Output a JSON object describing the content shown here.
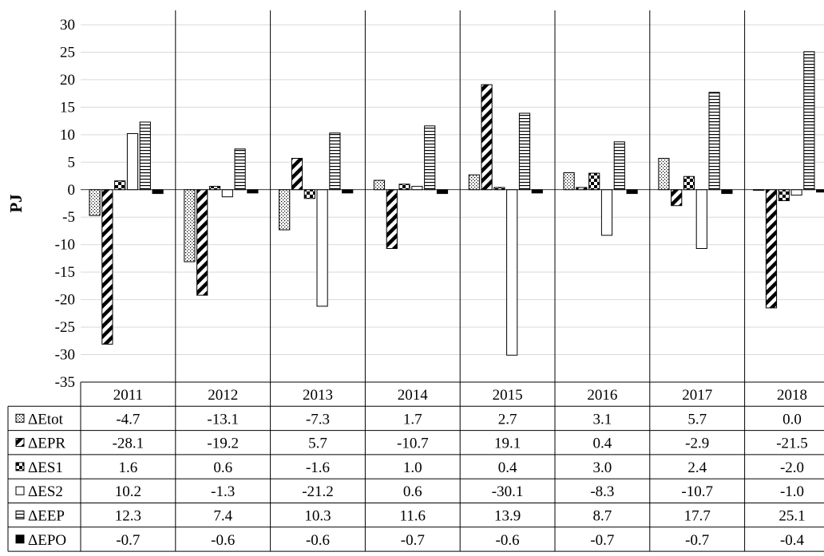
{
  "chart_data": {
    "type": "bar",
    "ylabel": "PJ",
    "ylim": [
      -35,
      30
    ],
    "yticks": [
      "30",
      "25",
      "20",
      "15",
      "10",
      "5",
      "0",
      "-5",
      "-10",
      "-15",
      "-20",
      "-25",
      "-30",
      "-35"
    ],
    "categories": [
      "2011",
      "2012",
      "2013",
      "2014",
      "2015",
      "2016",
      "2017",
      "2018"
    ],
    "legend_placement": "data-table-left",
    "grid": true,
    "series": [
      {
        "name": "ΔEtot",
        "pattern": "dots",
        "values": [
          -4.7,
          -13.1,
          -7.3,
          1.7,
          2.7,
          3.1,
          5.7,
          0.0
        ],
        "labels": [
          "-4.7",
          "-13.1",
          "-7.3",
          "1.7",
          "2.7",
          "3.1",
          "5.7",
          "0.0"
        ]
      },
      {
        "name": "ΔEPR",
        "pattern": "diagonal",
        "values": [
          -28.1,
          -19.2,
          5.7,
          -10.7,
          19.1,
          0.4,
          -2.9,
          -21.5
        ],
        "labels": [
          "-28.1",
          "-19.2",
          "5.7",
          "-10.7",
          "19.1",
          "0.4",
          "-2.9",
          "-21.5"
        ]
      },
      {
        "name": "ΔES1",
        "pattern": "checker",
        "values": [
          1.6,
          0.6,
          -1.6,
          1.0,
          0.4,
          3.0,
          2.4,
          -2.0
        ],
        "labels": [
          "1.6",
          "0.6",
          "-1.6",
          "1.0",
          "0.4",
          "3.0",
          "2.4",
          "-2.0"
        ]
      },
      {
        "name": "ΔES2",
        "pattern": "empty",
        "values": [
          10.2,
          -1.3,
          -21.2,
          0.6,
          -30.1,
          -8.3,
          -10.7,
          -1.0
        ],
        "labels": [
          "10.2",
          "-1.3",
          "-21.2",
          "0.6",
          "-30.1",
          "-8.3",
          "-10.7",
          "-1.0"
        ]
      },
      {
        "name": "ΔEEP",
        "pattern": "horizontal",
        "values": [
          12.3,
          7.4,
          10.3,
          11.6,
          13.9,
          8.7,
          17.7,
          25.1
        ],
        "labels": [
          "12.3",
          "7.4",
          "10.3",
          "11.6",
          "13.9",
          "8.7",
          "17.7",
          "25.1"
        ]
      },
      {
        "name": "ΔEPO",
        "pattern": "solid",
        "values": [
          -0.7,
          -0.6,
          -0.6,
          -0.7,
          -0.6,
          -0.7,
          -0.7,
          -0.4
        ],
        "labels": [
          "-0.7",
          "-0.6",
          "-0.6",
          "-0.7",
          "-0.6",
          "-0.7",
          "-0.7",
          "-0.4"
        ]
      }
    ],
    "colors": {
      "fill": "#ffffff",
      "ink": "#000000",
      "grid": "#d9d9d9"
    }
  }
}
